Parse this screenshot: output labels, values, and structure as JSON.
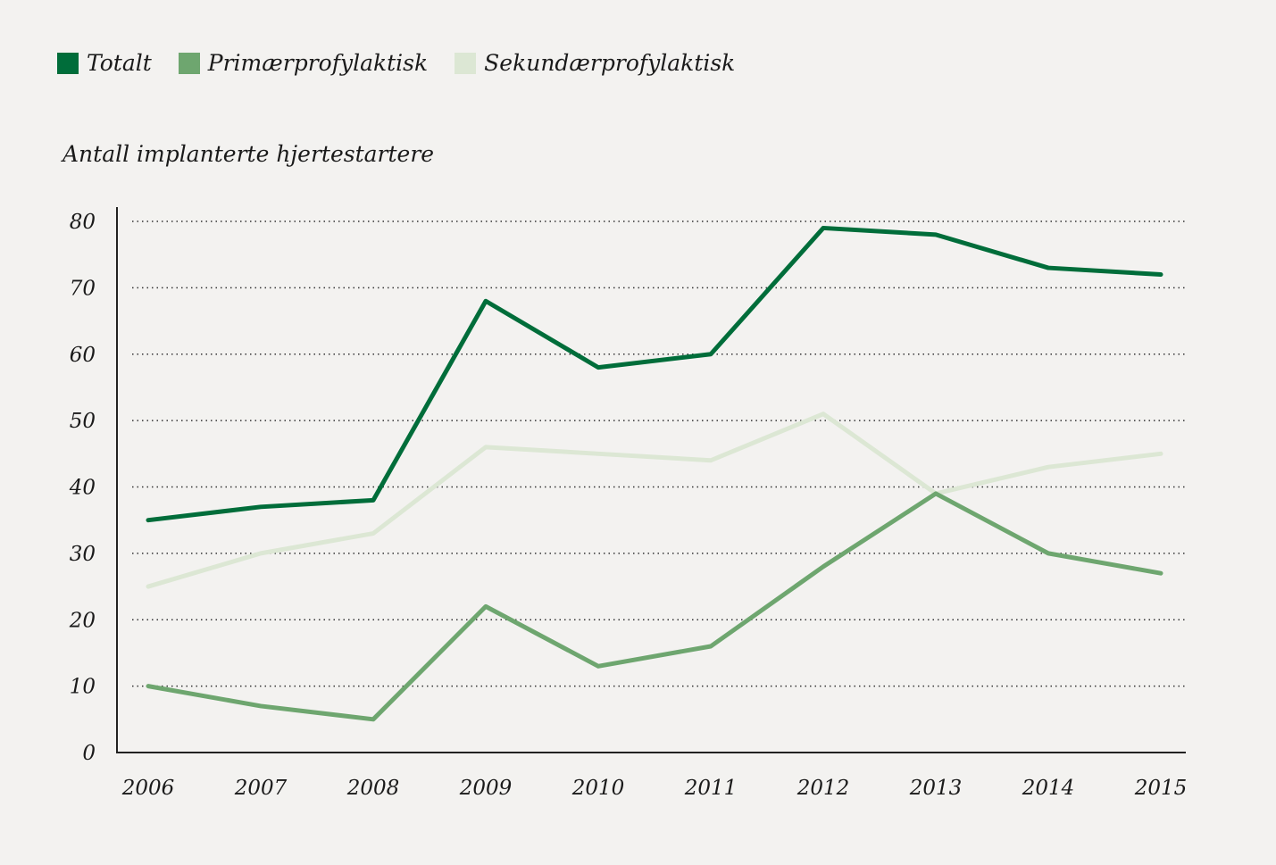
{
  "chart_data": {
    "type": "line",
    "title": "",
    "xlabel": "",
    "ylabel": "Antall implanterte hjertestartere",
    "ylim": [
      0,
      80
    ],
    "yticks": [
      0,
      10,
      20,
      30,
      40,
      50,
      60,
      70,
      80
    ],
    "grid": "horizontal dotted",
    "legend_placement": "top-left",
    "x": [
      "2006",
      "2007",
      "2008",
      "2009",
      "2010",
      "2011",
      "2012",
      "2013",
      "2014",
      "2015"
    ],
    "series": [
      {
        "name": "Totalt",
        "color": "#006d3a",
        "values": [
          35,
          37,
          38,
          68,
          58,
          60,
          79,
          78,
          73,
          72
        ]
      },
      {
        "name": "Primærprofylaktisk",
        "color": "#6ea66f",
        "values": [
          10,
          7,
          5,
          22,
          13,
          16,
          28,
          39,
          30,
          27
        ]
      },
      {
        "name": "Sekundærprofylaktisk",
        "color": "#dce7d4",
        "values": [
          25,
          30,
          33,
          46,
          45,
          44,
          51,
          39,
          43,
          45
        ]
      }
    ]
  }
}
